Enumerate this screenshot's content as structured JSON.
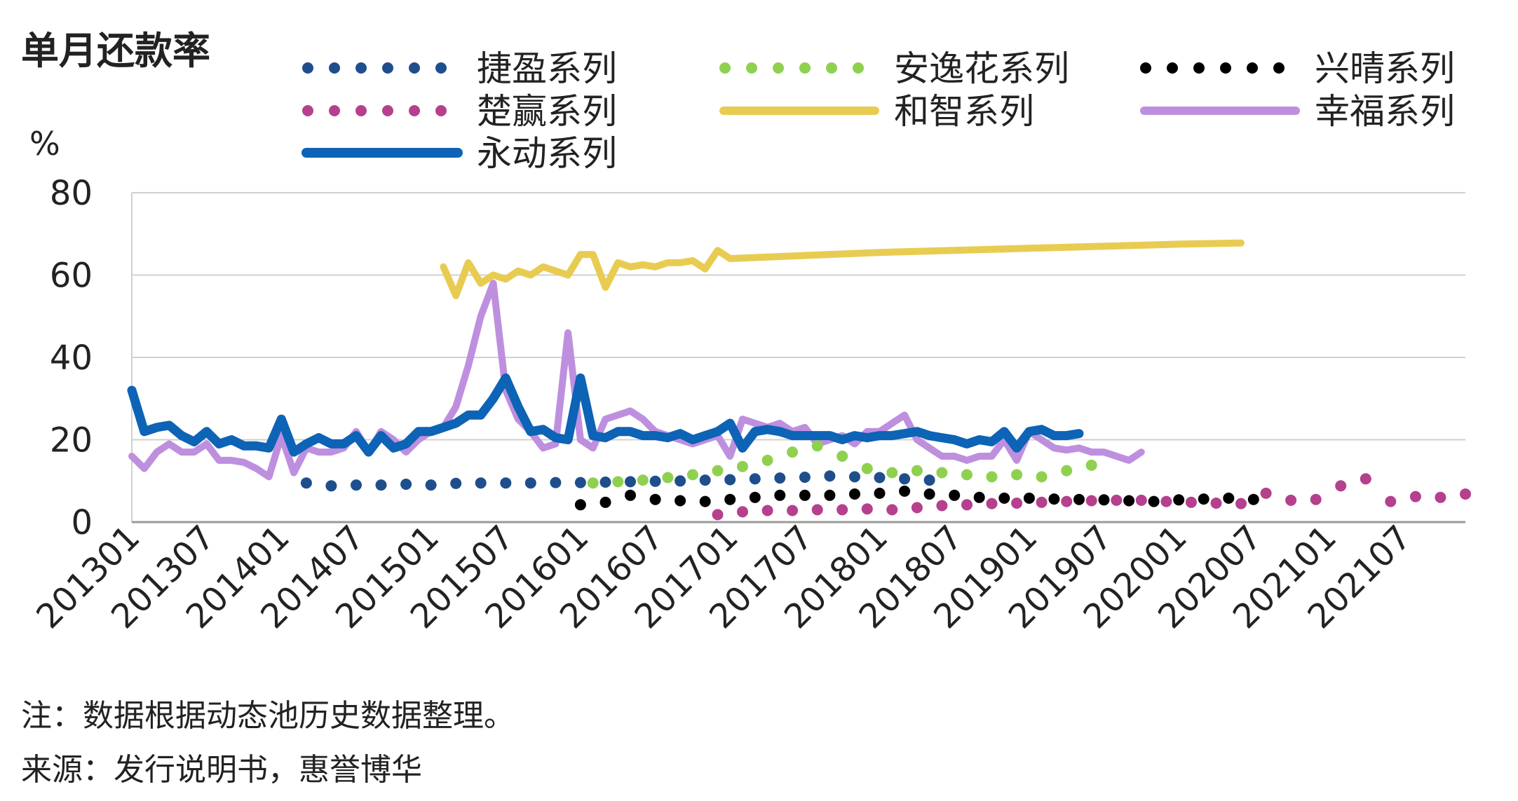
{
  "title": "单月还款率",
  "notes": {
    "note": "注：数据根据动态池历史数据整理。",
    "source": "来源：发行说明书，惠誉博华"
  },
  "chart_data": {
    "type": "line",
    "title": "单月还款率",
    "ylabel": "%",
    "xlabel": "",
    "ylim": [
      0,
      80
    ],
    "yticks": [
      0,
      20,
      40,
      60,
      80
    ],
    "x_start": "201301",
    "x_end": "202112",
    "x_tick_labels": [
      "201301",
      "201307",
      "201401",
      "201407",
      "201501",
      "201507",
      "201601",
      "201607",
      "201701",
      "201707",
      "201801",
      "201807",
      "201901",
      "201907",
      "202001",
      "202007",
      "202101",
      "202107"
    ],
    "grid": true,
    "legend_position": "top",
    "series": [
      {
        "name": "捷盈系列",
        "style": "dotted",
        "color": "#1f4e8c",
        "start": "201403",
        "step": 2,
        "values": [
          9.5,
          8.8,
          9.0,
          9.0,
          9.2,
          9.0,
          9.4,
          9.5,
          9.5,
          9.5,
          9.6,
          9.6,
          9.7,
          9.8,
          9.9,
          10.0,
          10.2,
          10.3,
          10.5,
          10.7,
          10.9,
          11.2,
          11.0,
          10.8,
          10.5,
          10.2
        ]
      },
      {
        "name": "安逸花系列",
        "style": "dotted",
        "color": "#8fd14f",
        "start": "201602",
        "step": 2,
        "values": [
          9.5,
          9.8,
          10.2,
          10.8,
          11.5,
          12.5,
          13.5,
          15.0,
          17.0,
          18.5,
          16.0,
          13.0,
          12.0,
          12.5,
          12.0,
          11.5,
          11.0,
          11.5,
          11.0,
          12.5,
          13.8
        ]
      },
      {
        "name": "兴晴系列",
        "style": "dotted",
        "color": "#000000",
        "start": "201601",
        "step": 2,
        "values": [
          4.2,
          4.8,
          6.5,
          5.5,
          5.2,
          5.0,
          5.5,
          6.0,
          6.5,
          6.5,
          6.5,
          6.8,
          7.0,
          7.5,
          6.8,
          6.5,
          6.0,
          5.8,
          5.8,
          5.6,
          5.5,
          5.4,
          5.2,
          5.0,
          5.4,
          5.6,
          5.8,
          5.5
        ]
      },
      {
        "name": "楚赢系列",
        "style": "dotted",
        "color": "#b5408d",
        "start": "201612",
        "step": 2,
        "values": [
          1.8,
          2.5,
          2.8,
          2.8,
          3.0,
          3.0,
          3.2,
          3.0,
          3.5,
          4.0,
          4.2,
          4.5,
          4.6,
          4.8,
          5.0,
          5.2,
          5.3,
          5.3,
          5.0,
          4.8,
          4.6,
          4.5,
          7.0,
          5.3,
          5.5,
          8.8,
          10.5,
          5.0,
          6.2,
          6.0,
          6.8
        ]
      },
      {
        "name": "和智系列",
        "style": "solid",
        "color": "#e8cc52",
        "points": [
          [
            "201502",
            62
          ],
          [
            "201503",
            55
          ],
          [
            "201504",
            63
          ],
          [
            "201505",
            58
          ],
          [
            "201506",
            60
          ],
          [
            "201507",
            59
          ],
          [
            "201508",
            61
          ],
          [
            "201509",
            60
          ],
          [
            "201510",
            62
          ],
          [
            "201511",
            61
          ],
          [
            "201512",
            60
          ],
          [
            "201601",
            65
          ],
          [
            "201602",
            65
          ],
          [
            "201603",
            57
          ],
          [
            "201604",
            63
          ],
          [
            "201605",
            62
          ],
          [
            "201606",
            62.5
          ],
          [
            "201607",
            62
          ],
          [
            "201608",
            63
          ],
          [
            "201609",
            63
          ],
          [
            "201610",
            63.5
          ],
          [
            "201611",
            61.5
          ],
          [
            "201612",
            66
          ],
          [
            "201701",
            64
          ],
          [
            "201801",
            65.5
          ],
          [
            "201901",
            66.5
          ],
          [
            "202001",
            67.5
          ],
          [
            "202006",
            67.8
          ]
        ]
      },
      {
        "name": "幸福系列",
        "style": "solid",
        "color": "#be8fdf",
        "points": [
          [
            "201301",
            16
          ],
          [
            "201302",
            13
          ],
          [
            "201303",
            17
          ],
          [
            "201304",
            19
          ],
          [
            "201305",
            17
          ],
          [
            "201306",
            17
          ],
          [
            "201307",
            19
          ],
          [
            "201308",
            15
          ],
          [
            "201309",
            15
          ],
          [
            "201310",
            14.5
          ],
          [
            "201311",
            13
          ],
          [
            "201312",
            11
          ],
          [
            "201401",
            21
          ],
          [
            "201402",
            12
          ],
          [
            "201403",
            18
          ],
          [
            "201404",
            17
          ],
          [
            "201405",
            17
          ],
          [
            "201406",
            18
          ],
          [
            "201407",
            22
          ],
          [
            "201408",
            17
          ],
          [
            "201409",
            22
          ],
          [
            "201410",
            20
          ],
          [
            "201411",
            17
          ],
          [
            "201412",
            20
          ],
          [
            "201501",
            22
          ],
          [
            "201502",
            23
          ],
          [
            "201503",
            28
          ],
          [
            "201504",
            38
          ],
          [
            "201505",
            50
          ],
          [
            "201506",
            58
          ],
          [
            "201507",
            32
          ],
          [
            "201508",
            25
          ],
          [
            "201509",
            22
          ],
          [
            "201510",
            18
          ],
          [
            "201511",
            19
          ],
          [
            "201512",
            46
          ],
          [
            "201601",
            20
          ],
          [
            "201602",
            18
          ],
          [
            "201603",
            25
          ],
          [
            "201604",
            26
          ],
          [
            "201605",
            27
          ],
          [
            "201606",
            25
          ],
          [
            "201607",
            22
          ],
          [
            "201608",
            21
          ],
          [
            "201609",
            20
          ],
          [
            "201610",
            19
          ],
          [
            "201611",
            20
          ],
          [
            "201612",
            21
          ],
          [
            "201701",
            16
          ],
          [
            "201702",
            25
          ],
          [
            "201703",
            24
          ],
          [
            "201704",
            23
          ],
          [
            "201705",
            24
          ],
          [
            "201706",
            22
          ],
          [
            "201707",
            23
          ],
          [
            "201708",
            19
          ],
          [
            "201709",
            20
          ],
          [
            "201710",
            21
          ],
          [
            "201711",
            19
          ],
          [
            "201712",
            22
          ],
          [
            "201801",
            22
          ],
          [
            "201802",
            24
          ],
          [
            "201803",
            26
          ],
          [
            "201804",
            20
          ],
          [
            "201805",
            18
          ],
          [
            "201806",
            16
          ],
          [
            "201807",
            16
          ],
          [
            "201808",
            15
          ],
          [
            "201809",
            16
          ],
          [
            "201810",
            16
          ],
          [
            "201811",
            20
          ],
          [
            "201812",
            15
          ],
          [
            "201901",
            22
          ],
          [
            "201902",
            20
          ],
          [
            "201903",
            18
          ],
          [
            "201904",
            17.5
          ],
          [
            "201905",
            18
          ],
          [
            "201906",
            17
          ],
          [
            "201907",
            17
          ],
          [
            "201908",
            16
          ],
          [
            "201909",
            15
          ],
          [
            "201910",
            17
          ]
        ]
      },
      {
        "name": "永动系列",
        "style": "solid",
        "color": "#0d63b5",
        "points": [
          [
            "201301",
            32
          ],
          [
            "201302",
            22
          ],
          [
            "201303",
            23
          ],
          [
            "201304",
            23.5
          ],
          [
            "201305",
            21
          ],
          [
            "201306",
            19.5
          ],
          [
            "201307",
            22
          ],
          [
            "201308",
            19
          ],
          [
            "201309",
            20
          ],
          [
            "201310",
            18.5
          ],
          [
            "201311",
            18.5
          ],
          [
            "201312",
            18
          ],
          [
            "201401",
            25
          ],
          [
            "201402",
            17
          ],
          [
            "201403",
            19
          ],
          [
            "201404",
            20.5
          ],
          [
            "201405",
            19
          ],
          [
            "201406",
            19
          ],
          [
            "201407",
            21
          ],
          [
            "201408",
            17
          ],
          [
            "201409",
            21
          ],
          [
            "201410",
            18
          ],
          [
            "201411",
            19
          ],
          [
            "201412",
            22
          ],
          [
            "201501",
            22
          ],
          [
            "201502",
            23
          ],
          [
            "201503",
            24
          ],
          [
            "201504",
            26
          ],
          [
            "201505",
            26
          ],
          [
            "201506",
            30
          ],
          [
            "201507",
            35
          ],
          [
            "201508",
            28
          ],
          [
            "201509",
            22
          ],
          [
            "201510",
            22.5
          ],
          [
            "201511",
            20.5
          ],
          [
            "201512",
            20
          ],
          [
            "201601",
            35
          ],
          [
            "201602",
            21
          ],
          [
            "201603",
            20.5
          ],
          [
            "201604",
            22
          ],
          [
            "201605",
            22
          ],
          [
            "201606",
            21
          ],
          [
            "201607",
            21
          ],
          [
            "201608",
            20.5
          ],
          [
            "201609",
            21.5
          ],
          [
            "201610",
            20
          ],
          [
            "201611",
            21
          ],
          [
            "201612",
            22
          ],
          [
            "201701",
            24
          ],
          [
            "201702",
            18
          ],
          [
            "201703",
            22
          ],
          [
            "201704",
            22.5
          ],
          [
            "201705",
            22
          ],
          [
            "201706",
            21
          ],
          [
            "201707",
            21
          ],
          [
            "201708",
            21
          ],
          [
            "201709",
            21
          ],
          [
            "201710",
            20
          ],
          [
            "201711",
            21
          ],
          [
            "201712",
            20.5
          ],
          [
            "201801",
            21
          ],
          [
            "201802",
            21
          ],
          [
            "201803",
            21.5
          ],
          [
            "201804",
            22
          ],
          [
            "201805",
            21
          ],
          [
            "201806",
            20.5
          ],
          [
            "201807",
            20
          ],
          [
            "201808",
            19
          ],
          [
            "201809",
            20
          ],
          [
            "201810",
            19.5
          ],
          [
            "201811",
            22
          ],
          [
            "201812",
            18
          ],
          [
            "201901",
            22
          ],
          [
            "201902",
            22.5
          ],
          [
            "201903",
            21
          ],
          [
            "201904",
            21
          ],
          [
            "201905",
            21.5
          ]
        ]
      }
    ]
  }
}
